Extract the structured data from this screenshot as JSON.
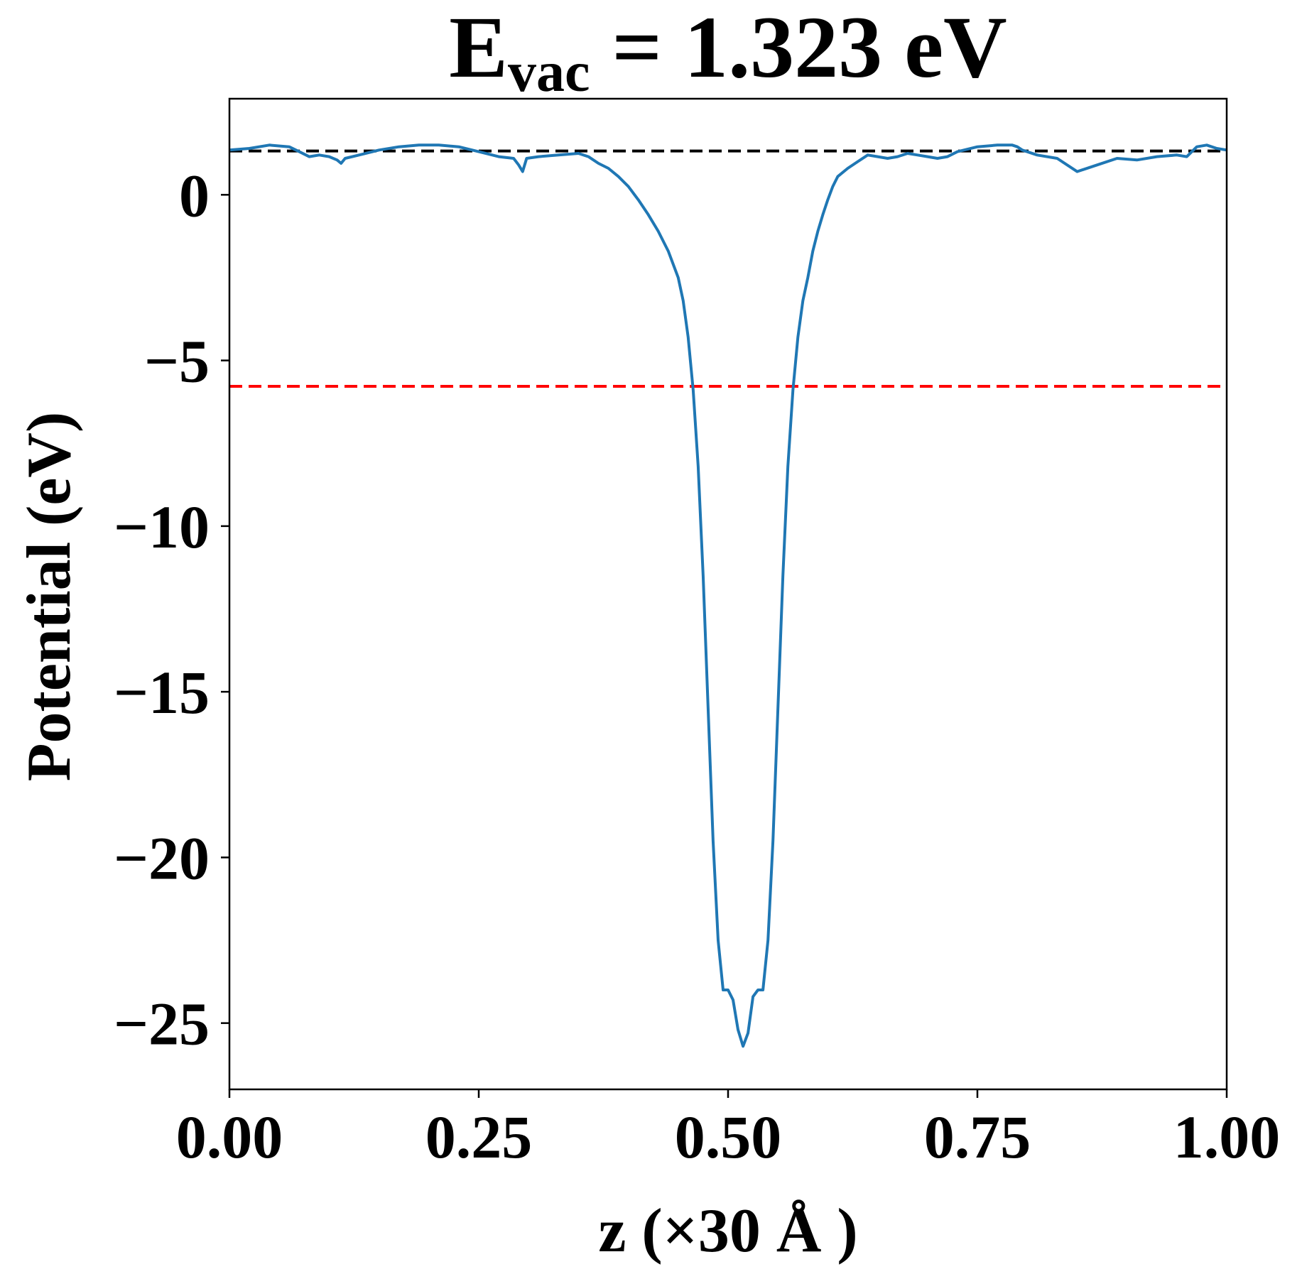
{
  "chart_data": {
    "type": "line",
    "title": {
      "main": "E",
      "subscript": "vac",
      "rest": " = 1.323 eV"
    },
    "xlabel": "z (×30 Å )",
    "ylabel": "Potential (eV)",
    "xlim": [
      0.0,
      1.0
    ],
    "ylim": [
      -27.0,
      2.9
    ],
    "grid": false,
    "x_ticks": [
      {
        "value": 0.0,
        "label": "0.00"
      },
      {
        "value": 0.25,
        "label": "0.25"
      },
      {
        "value": 0.5,
        "label": "0.50"
      },
      {
        "value": 0.75,
        "label": "0.75"
      },
      {
        "value": 1.0,
        "label": "1.00"
      }
    ],
    "y_ticks": [
      {
        "value": 0,
        "label": "0"
      },
      {
        "value": -5,
        "label": "−5"
      },
      {
        "value": -10,
        "label": "−10"
      },
      {
        "value": -15,
        "label": "−15"
      },
      {
        "value": -20,
        "label": "−20"
      },
      {
        "value": -25,
        "label": "−25"
      }
    ],
    "reference_lines": [
      {
        "y": 1.323,
        "color": "#000000",
        "style": "dashed"
      },
      {
        "y": -5.78,
        "color": "#ff0000",
        "style": "dashed"
      }
    ],
    "series": [
      {
        "color": "#1f77b4",
        "x": [
          0.0,
          0.02,
          0.04,
          0.06,
          0.07,
          0.08,
          0.09,
          0.1,
          0.108,
          0.112,
          0.116,
          0.13,
          0.15,
          0.17,
          0.19,
          0.21,
          0.23,
          0.25,
          0.27,
          0.285,
          0.29,
          0.294,
          0.298,
          0.31,
          0.33,
          0.35,
          0.36,
          0.37,
          0.38,
          0.39,
          0.4,
          0.41,
          0.42,
          0.43,
          0.44,
          0.45,
          0.455,
          0.46,
          0.465,
          0.47,
          0.475,
          0.48,
          0.485,
          0.49,
          0.495,
          0.5,
          0.505,
          0.51,
          0.515,
          0.52,
          0.525,
          0.53,
          0.535,
          0.54,
          0.545,
          0.55,
          0.555,
          0.56,
          0.565,
          0.57,
          0.575,
          0.58,
          0.585,
          0.59,
          0.595,
          0.6,
          0.605,
          0.61,
          0.62,
          0.63,
          0.64,
          0.65,
          0.66,
          0.67,
          0.68,
          0.69,
          0.7,
          0.71,
          0.72,
          0.73,
          0.75,
          0.77,
          0.785,
          0.79,
          0.795,
          0.81,
          0.83,
          0.85,
          0.87,
          0.89,
          0.91,
          0.93,
          0.95,
          0.96,
          0.965,
          0.97,
          0.98,
          0.99,
          1.0
        ],
        "y": [
          1.35,
          1.4,
          1.5,
          1.45,
          1.3,
          1.15,
          1.2,
          1.15,
          1.05,
          0.95,
          1.1,
          1.2,
          1.35,
          1.45,
          1.5,
          1.5,
          1.45,
          1.3,
          1.15,
          1.1,
          0.9,
          0.7,
          1.1,
          1.15,
          1.2,
          1.25,
          1.15,
          0.95,
          0.8,
          0.55,
          0.25,
          -0.15,
          -0.6,
          -1.1,
          -1.7,
          -2.5,
          -3.2,
          -4.3,
          -5.9,
          -8.2,
          -11.5,
          -15.5,
          -19.5,
          -22.5,
          -24.0,
          -24.0,
          -24.3,
          -25.2,
          -25.7,
          -25.3,
          -24.2,
          -24.0,
          -24.0,
          -22.5,
          -19.5,
          -15.5,
          -11.5,
          -8.2,
          -5.9,
          -4.3,
          -3.2,
          -2.5,
          -1.7,
          -1.1,
          -0.6,
          -0.15,
          0.25,
          0.55,
          0.8,
          1.0,
          1.2,
          1.15,
          1.1,
          1.15,
          1.25,
          1.2,
          1.15,
          1.1,
          1.15,
          1.3,
          1.45,
          1.5,
          1.5,
          1.45,
          1.35,
          1.2,
          1.1,
          0.7,
          0.9,
          1.1,
          1.05,
          1.15,
          1.2,
          1.15,
          1.3,
          1.45,
          1.5,
          1.4,
          1.35
        ]
      }
    ]
  }
}
